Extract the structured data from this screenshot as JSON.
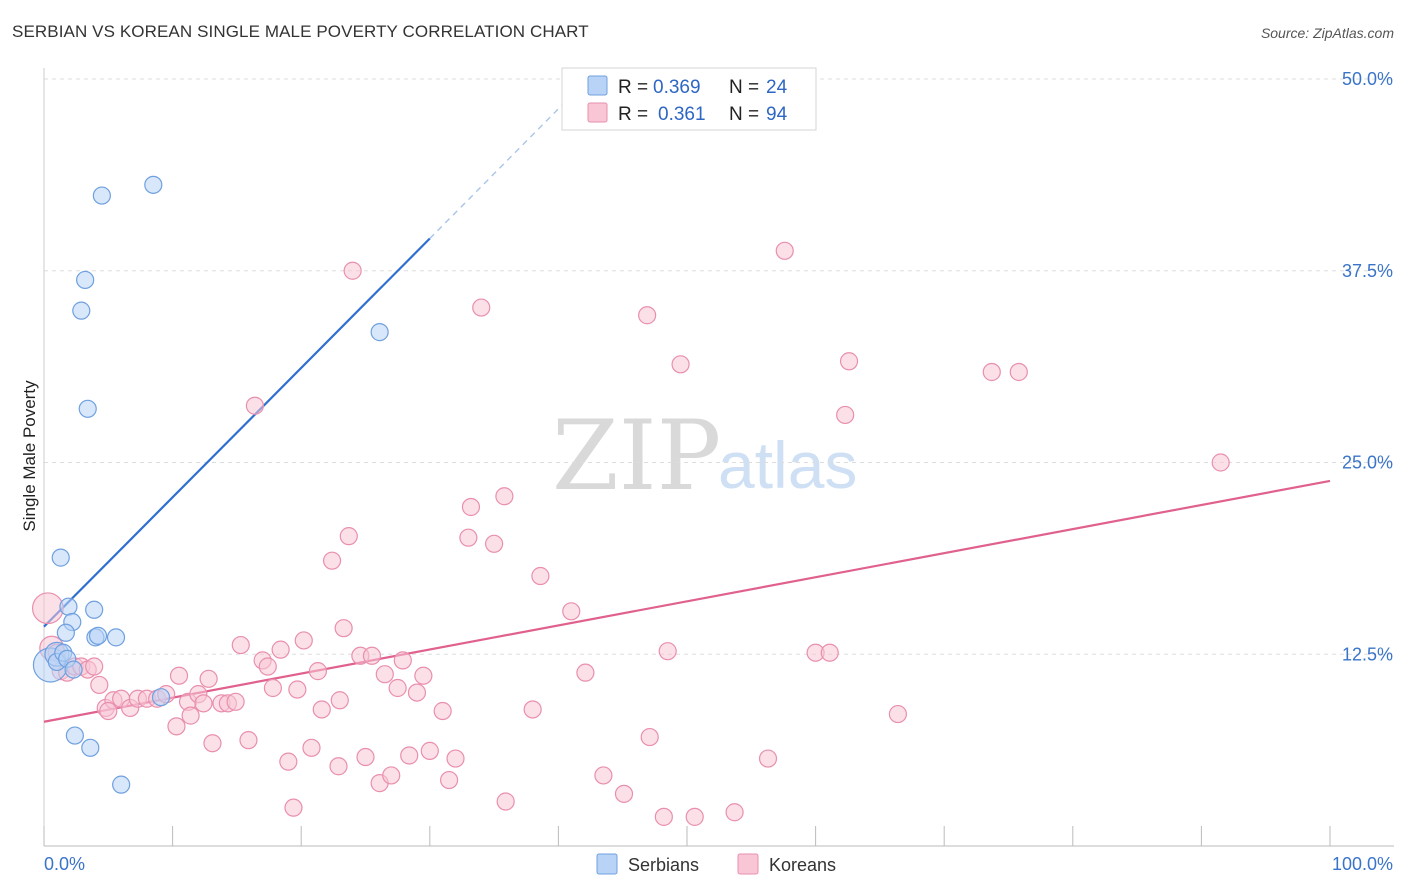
{
  "header": {
    "title": "SERBIAN VS KOREAN SINGLE MALE POVERTY CORRELATION CHART",
    "source": "Source: ZipAtlas.com"
  },
  "watermark": {
    "zip": "ZIP",
    "atlas": "atlas"
  },
  "colors": {
    "serbians_fill": "#b8d3f5",
    "serbians_stroke": "#6fa0df",
    "serbians_line": "#2f6fd0",
    "koreans_fill": "#f8c6d5",
    "koreans_stroke": "#e98fae",
    "koreans_line": "#e0608e",
    "tick_label": "#3a74c9",
    "grid": "#dddddd"
  },
  "legend": {
    "r_label": "R =",
    "n_label": "N =",
    "serbians": {
      "r": "0.369",
      "n": "24"
    },
    "koreans": {
      "r": "0.361",
      "n": "94"
    }
  },
  "bottom_legend": [
    "Serbians",
    "Koreans"
  ],
  "chart_data": {
    "type": "scatter",
    "title": "SERBIAN VS KOREAN SINGLE MALE POVERTY CORRELATION CHART",
    "xlabel": "",
    "ylabel": "Single Male Poverty",
    "xlim": [
      0,
      100
    ],
    "ylim": [
      0,
      50
    ],
    "x_tick_labels": [
      "0.0%",
      "100.0%"
    ],
    "y_ticks": [
      12.5,
      25.0,
      37.5,
      50.0
    ],
    "y_tick_labels": [
      "12.5%",
      "25.0%",
      "37.5%",
      "50.0%"
    ],
    "grid": true,
    "legend_position": "top-center",
    "series": [
      {
        "name": "Serbians",
        "r": 0.369,
        "n": 24,
        "trend": {
          "x0": 0,
          "y0": 14.3,
          "x1": 30,
          "y1": 39.6,
          "dash_to_x": 41,
          "dash_to_y": 48.9
        },
        "points": [
          [
            0.5,
            11.8,
            2
          ],
          [
            1.0,
            12.5,
            1.4
          ],
          [
            1.0,
            12.0,
            1
          ],
          [
            1.5,
            12.6,
            1
          ],
          [
            1.8,
            12.2,
            1
          ],
          [
            1.3,
            18.8,
            1
          ],
          [
            1.9,
            15.6,
            1
          ],
          [
            2.2,
            14.6,
            1
          ],
          [
            1.7,
            13.9,
            1
          ],
          [
            2.3,
            11.5,
            1
          ],
          [
            3.2,
            36.9,
            1
          ],
          [
            2.9,
            34.9,
            1
          ],
          [
            3.4,
            28.5,
            1
          ],
          [
            3.9,
            15.4,
            1
          ],
          [
            4.0,
            13.6,
            1
          ],
          [
            4.2,
            13.7,
            1
          ],
          [
            5.6,
            13.6,
            1
          ],
          [
            3.6,
            6.4,
            1
          ],
          [
            2.4,
            7.2,
            1
          ],
          [
            6.0,
            4.0,
            1
          ],
          [
            9.1,
            9.7,
            1
          ],
          [
            4.5,
            42.4,
            1
          ],
          [
            8.5,
            43.1,
            1
          ],
          [
            26.1,
            33.5,
            1
          ]
        ]
      },
      {
        "name": "Koreans",
        "r": 0.361,
        "n": 94,
        "trend": {
          "x0": 0,
          "y0": 8.1,
          "x1": 100,
          "y1": 23.8
        },
        "points": [
          [
            0.3,
            15.5,
            1.8
          ],
          [
            0.6,
            12.9,
            1.4
          ],
          [
            1.0,
            12.6,
            1
          ],
          [
            1.3,
            11.4,
            1
          ],
          [
            1.8,
            11.3,
            1
          ],
          [
            2.4,
            11.7,
            1
          ],
          [
            2.9,
            11.7,
            1
          ],
          [
            3.4,
            11.5,
            1
          ],
          [
            3.9,
            11.7,
            1
          ],
          [
            4.3,
            10.5,
            1
          ],
          [
            4.8,
            9.0,
            1
          ],
          [
            5.4,
            9.5,
            1
          ],
          [
            6.0,
            9.6,
            1
          ],
          [
            6.7,
            9.0,
            1
          ],
          [
            7.3,
            9.6,
            1
          ],
          [
            8.0,
            9.6,
            1
          ],
          [
            8.8,
            9.6,
            1
          ],
          [
            9.5,
            9.9,
            1
          ],
          [
            10.3,
            7.8,
            1
          ],
          [
            10.5,
            11.1,
            1
          ],
          [
            11.2,
            9.4,
            1
          ],
          [
            11.4,
            8.5,
            1
          ],
          [
            12.0,
            9.9,
            1
          ],
          [
            12.4,
            9.3,
            1
          ],
          [
            12.8,
            10.9,
            1
          ],
          [
            13.1,
            6.7,
            1
          ],
          [
            13.8,
            9.3,
            1
          ],
          [
            14.3,
            9.3,
            1
          ],
          [
            14.9,
            9.4,
            1
          ],
          [
            15.3,
            13.1,
            1
          ],
          [
            15.9,
            6.9,
            1
          ],
          [
            16.4,
            28.7,
            1
          ],
          [
            17.0,
            12.1,
            1
          ],
          [
            17.4,
            11.7,
            1
          ],
          [
            17.8,
            10.3,
            1
          ],
          [
            18.4,
            12.8,
            1
          ],
          [
            19.0,
            5.5,
            1
          ],
          [
            19.4,
            2.5,
            1
          ],
          [
            19.7,
            10.2,
            1
          ],
          [
            20.2,
            13.4,
            1
          ],
          [
            20.8,
            6.4,
            1
          ],
          [
            21.3,
            11.4,
            1
          ],
          [
            21.6,
            8.9,
            1
          ],
          [
            22.4,
            18.6,
            1
          ],
          [
            22.9,
            5.2,
            1
          ],
          [
            23.3,
            14.2,
            1
          ],
          [
            23.7,
            20.2,
            1
          ],
          [
            24.0,
            37.5,
            1
          ],
          [
            24.6,
            12.4,
            1
          ],
          [
            25.0,
            5.8,
            1
          ],
          [
            25.5,
            12.4,
            1
          ],
          [
            26.1,
            4.1,
            1
          ],
          [
            26.5,
            11.2,
            1
          ],
          [
            27.0,
            4.6,
            1
          ],
          [
            27.5,
            10.3,
            1
          ],
          [
            27.9,
            12.1,
            1
          ],
          [
            28.4,
            5.9,
            1
          ],
          [
            29.0,
            10.0,
            1
          ],
          [
            29.5,
            11.1,
            1
          ],
          [
            30.0,
            6.2,
            1
          ],
          [
            31.0,
            8.8,
            1
          ],
          [
            31.5,
            4.3,
            1
          ],
          [
            32.0,
            5.7,
            1
          ],
          [
            33.0,
            20.1,
            1
          ],
          [
            33.2,
            22.1,
            1
          ],
          [
            34.0,
            35.1,
            1
          ],
          [
            35.0,
            19.7,
            1
          ],
          [
            35.8,
            22.8,
            1
          ],
          [
            35.9,
            2.9,
            1
          ],
          [
            38.0,
            8.9,
            1
          ],
          [
            38.6,
            17.6,
            1
          ],
          [
            41.0,
            15.3,
            1
          ],
          [
            42.1,
            11.3,
            1
          ],
          [
            43.5,
            4.6,
            1
          ],
          [
            45.1,
            3.4,
            1
          ],
          [
            46.9,
            34.6,
            1
          ],
          [
            47.1,
            7.1,
            1
          ],
          [
            48.2,
            1.9,
            1
          ],
          [
            48.5,
            12.7,
            1
          ],
          [
            49.5,
            31.4,
            1
          ],
          [
            50.6,
            1.9,
            1
          ],
          [
            53.7,
            2.2,
            1
          ],
          [
            56.3,
            5.7,
            1
          ],
          [
            57.6,
            38.8,
            1
          ],
          [
            60.0,
            12.6,
            1
          ],
          [
            61.1,
            12.6,
            1
          ],
          [
            62.3,
            28.1,
            1
          ],
          [
            62.6,
            31.6,
            1
          ],
          [
            66.4,
            8.6,
            1
          ],
          [
            73.7,
            30.9,
            1
          ],
          [
            75.8,
            30.9,
            1
          ],
          [
            91.5,
            25.0,
            1
          ],
          [
            23.0,
            9.5,
            1
          ],
          [
            5.0,
            8.8,
            1
          ]
        ]
      }
    ]
  }
}
